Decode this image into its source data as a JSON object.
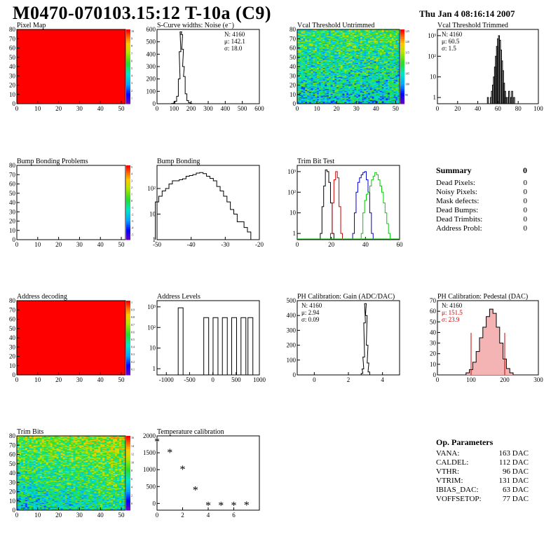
{
  "header": {
    "title": "M0470-070103.15:12 T-10a (C9)",
    "date": "Thu Jan  4 08:16:14 2007"
  },
  "colors": {
    "red": "#ff0000",
    "green_line": "#00cc00",
    "blue_line": "#0000cc",
    "dark_red": "#cc0000"
  },
  "chart_data": [
    {
      "id": "pixel-map",
      "type": "heatmap",
      "title": "Pixel Map",
      "xlim": [
        0,
        52
      ],
      "ylim": [
        0,
        80
      ],
      "xticks": [
        0,
        10,
        20,
        30,
        40,
        50
      ],
      "yticks": [
        0,
        10,
        20,
        30,
        40,
        50,
        60,
        70,
        80
      ],
      "fill": "uniform-red",
      "zticks": [
        "1",
        "2",
        "3",
        "4",
        "5",
        "6",
        "7",
        "8",
        "9",
        "10"
      ]
    },
    {
      "id": "scurve",
      "type": "line",
      "title": "S-Curve widths: Noise (e⁻)",
      "xlim": [
        0,
        600
      ],
      "ylim": [
        0,
        600
      ],
      "xticks": [
        0,
        100,
        200,
        300,
        400,
        500,
        600
      ],
      "yticks": [
        0,
        100,
        200,
        300,
        400,
        500,
        600
      ],
      "x": [
        80,
        90,
        100,
        110,
        120,
        130,
        135,
        140,
        145,
        150,
        155,
        160,
        170,
        180,
        190,
        200,
        210
      ],
      "y": [
        0,
        2,
        5,
        20,
        60,
        200,
        420,
        580,
        560,
        440,
        300,
        220,
        80,
        25,
        8,
        2,
        0
      ],
      "stats": [
        "N: 4160",
        "μ: 142.1",
        "σ: 18.0"
      ]
    },
    {
      "id": "vcal-untrimmed",
      "type": "heatmap",
      "title": "Vcal Threshold Untrimmed",
      "xlim": [
        0,
        52
      ],
      "ylim": [
        0,
        80
      ],
      "xticks": [
        0,
        10,
        20,
        30,
        40,
        50
      ],
      "yticks": [
        0,
        10,
        20,
        30,
        40,
        50,
        60,
        70,
        80
      ],
      "fill": "noise-green",
      "zticks": [
        "95",
        "100",
        "105",
        "110",
        "115",
        "120",
        "125"
      ]
    },
    {
      "id": "vcal-trimmed",
      "type": "line",
      "title": "Vcal Threshold Trimmed",
      "log": true,
      "xlim": [
        0,
        100
      ],
      "ylim": [
        0.5,
        2000
      ],
      "xticks": [
        0,
        20,
        40,
        60,
        80,
        100
      ],
      "ytickslog": [
        "1",
        "10²",
        "10³"
      ],
      "x": [
        50,
        51,
        52,
        53,
        54,
        55,
        56,
        57,
        58,
        59,
        60,
        61,
        62,
        63,
        64,
        65,
        66,
        67,
        68,
        69,
        70,
        71,
        72,
        73,
        74,
        75,
        76,
        77
      ],
      "y": [
        1,
        0,
        0,
        1,
        2,
        4,
        10,
        30,
        100,
        300,
        700,
        1000,
        600,
        200,
        60,
        20,
        5,
        2,
        1,
        0,
        1,
        2,
        0,
        1,
        2,
        0,
        1,
        0
      ],
      "stats": [
        "N: 4160",
        "μ: 60.5",
        "σ:  1.5"
      ]
    },
    {
      "id": "bump-problems",
      "type": "heatmap",
      "title": "Bump Bonding Problems",
      "xlim": [
        0,
        52
      ],
      "ylim": [
        0,
        80
      ],
      "xticks": [
        0,
        10,
        20,
        30,
        40,
        50
      ],
      "yticks": [
        0,
        10,
        20,
        30,
        40,
        50,
        60,
        70,
        80
      ],
      "fill": "empty",
      "zticks": [
        "-5",
        "-4",
        "-3",
        "-2",
        "-1",
        "0",
        "1",
        "2",
        "3",
        "4",
        "5"
      ]
    },
    {
      "id": "bump-bonding",
      "type": "line",
      "title": "Bump Bonding",
      "log": true,
      "xlim": [
        -50,
        -20
      ],
      "ylim": [
        1,
        800
      ],
      "xticks": [
        -50,
        -40,
        -30,
        -20
      ],
      "x": [
        -50,
        -49,
        -48,
        -47,
        -46,
        -45,
        -44,
        -43,
        -42,
        -41,
        -40,
        -39,
        -38,
        -37,
        -36,
        -35,
        -34,
        -33,
        -32,
        -31,
        -30,
        -29,
        -28,
        -27,
        -26,
        -25,
        -24,
        -23,
        -22
      ],
      "y": [
        30,
        50,
        80,
        100,
        150,
        200,
        200,
        220,
        240,
        300,
        320,
        350,
        400,
        420,
        380,
        300,
        250,
        200,
        120,
        80,
        50,
        30,
        15,
        10,
        5,
        5,
        3,
        2,
        1
      ]
    },
    {
      "id": "trim-bit-test",
      "type": "line",
      "title": "Trim Bit Test",
      "log": true,
      "xlim": [
        0,
        60
      ],
      "ylim": [
        0.5,
        2000
      ],
      "xticks": [
        0,
        20,
        40,
        60
      ],
      "series": [
        {
          "color": "#000000",
          "x": [
            14,
            15,
            16,
            17,
            18,
            19,
            20,
            21
          ],
          "y": [
            1,
            20,
            200,
            1200,
            1000,
            300,
            30,
            1
          ]
        },
        {
          "color": "#cc0000",
          "x": [
            20,
            21,
            22,
            23,
            24,
            25,
            26
          ],
          "y": [
            1,
            30,
            400,
            1000,
            500,
            20,
            1
          ]
        },
        {
          "color": "#0000cc",
          "x": [
            33,
            34,
            35,
            36,
            37,
            38,
            39,
            40,
            41,
            42,
            43,
            44
          ],
          "y": [
            1,
            10,
            100,
            300,
            500,
            700,
            900,
            1000,
            400,
            100,
            10,
            1
          ]
        },
        {
          "color": "#00cc00",
          "x": [
            38,
            39,
            40,
            41,
            42,
            43,
            44,
            45,
            46,
            47,
            48,
            49,
            50,
            51,
            52,
            53,
            54
          ],
          "y": [
            1,
            10,
            40,
            80,
            100,
            200,
            400,
            600,
            900,
            700,
            400,
            200,
            100,
            30,
            10,
            3,
            1
          ]
        }
      ]
    },
    {
      "id": "address-decoding",
      "type": "heatmap",
      "title": "Address decoding",
      "xlim": [
        0,
        52
      ],
      "ylim": [
        0,
        80
      ],
      "xticks": [
        0,
        10,
        20,
        30,
        40,
        50
      ],
      "yticks": [
        0,
        10,
        20,
        30,
        40,
        50,
        60,
        70,
        80
      ],
      "fill": "uniform-red",
      "zticks": [
        "0.1",
        "0.2",
        "0.3",
        "0.4",
        "0.5",
        "0.6",
        "0.7",
        "0.8",
        "0.9",
        "1"
      ]
    },
    {
      "id": "address-levels",
      "type": "line",
      "title": "Address Levels",
      "log": true,
      "xlim": [
        -1200,
        1000
      ],
      "ylim": [
        0.5,
        2000
      ],
      "xticks": [
        -1000,
        -500,
        0,
        500,
        1000
      ],
      "peaks": [
        -700,
        -150,
        50,
        250,
        450,
        650,
        800
      ]
    },
    {
      "id": "ph-gain",
      "type": "line",
      "title": "PH Calibration: Gain (ADC/DAC)",
      "xlim": [
        -1,
        5
      ],
      "ylim": [
        0,
        500
      ],
      "xticks": [
        0,
        2,
        4
      ],
      "yticks": [
        0,
        100,
        200,
        300,
        400,
        500
      ],
      "x": [
        2.7,
        2.8,
        2.85,
        2.9,
        2.95,
        3.0,
        3.05,
        3.1,
        3.15,
        3.2,
        3.3
      ],
      "y": [
        0,
        10,
        40,
        120,
        350,
        480,
        400,
        200,
        80,
        20,
        0
      ],
      "stats": [
        "N: 4160",
        "μ: 2.94",
        "σ: 0.09"
      ]
    },
    {
      "id": "ph-pedestal",
      "type": "line",
      "title": "PH Calibration: Pedestal (DAC)",
      "xlim": [
        0,
        300
      ],
      "ylim": [
        0,
        70
      ],
      "xticks": [
        0,
        100,
        200,
        300
      ],
      "yticks": [
        0,
        10,
        20,
        30,
        40,
        50,
        60,
        70
      ],
      "x": [
        90,
        100,
        110,
        120,
        130,
        140,
        150,
        160,
        170,
        180,
        190,
        200,
        210,
        220
      ],
      "y": [
        2,
        5,
        12,
        22,
        35,
        45,
        55,
        62,
        58,
        45,
        30,
        15,
        6,
        2
      ],
      "stats": [
        "N: 4160",
        "μ: 151.5",
        "σ: 23.9"
      ]
    },
    {
      "id": "trim-bits",
      "type": "heatmap",
      "title": "Trim Bits",
      "xlim": [
        0,
        52
      ],
      "ylim": [
        0,
        80
      ],
      "xticks": [
        0,
        10,
        20,
        30,
        40,
        50
      ],
      "yticks": [
        0,
        10,
        20,
        30,
        40,
        50,
        60,
        70,
        80
      ],
      "fill": "noise-gradient",
      "zticks": [
        "0",
        "2",
        "4",
        "6",
        "8",
        "10",
        "12",
        "14",
        "16"
      ]
    },
    {
      "id": "temperature",
      "type": "scatter",
      "title": "Temperature calibration",
      "xlim": [
        0,
        8
      ],
      "ylim": [
        -200,
        2000
      ],
      "xticks": [
        0,
        2,
        4,
        6
      ],
      "yticks": [
        0,
        500,
        1000,
        1500,
        2000
      ],
      "x": [
        0,
        1,
        2,
        3,
        4,
        5,
        6,
        7
      ],
      "y": [
        1820,
        1500,
        1000,
        390,
        -70,
        -70,
        -70,
        -50
      ]
    }
  ],
  "summary": {
    "title": "Summary",
    "total": "0",
    "rows": [
      {
        "label": "Dead Pixels:",
        "value": "0"
      },
      {
        "label": "Noisy Pixels:",
        "value": "0"
      },
      {
        "label": "Mask defects:",
        "value": "0"
      },
      {
        "label": "Dead Bumps:",
        "value": "0"
      },
      {
        "label": "Dead Trimbits:",
        "value": "0"
      },
      {
        "label": "Address Probl:",
        "value": "0"
      }
    ]
  },
  "opparams": {
    "title": "Op. Parameters",
    "rows": [
      {
        "label": "VANA:",
        "value": "163 DAC"
      },
      {
        "label": "CALDEL:",
        "value": "112 DAC"
      },
      {
        "label": "VTHR:",
        "value": " 96 DAC"
      },
      {
        "label": "VTRIM:",
        "value": "131 DAC"
      },
      {
        "label": "IBIAS_DAC:",
        "value": " 63 DAC"
      },
      {
        "label": "VOFFSETOP:",
        "value": " 77 DAC"
      }
    ]
  }
}
